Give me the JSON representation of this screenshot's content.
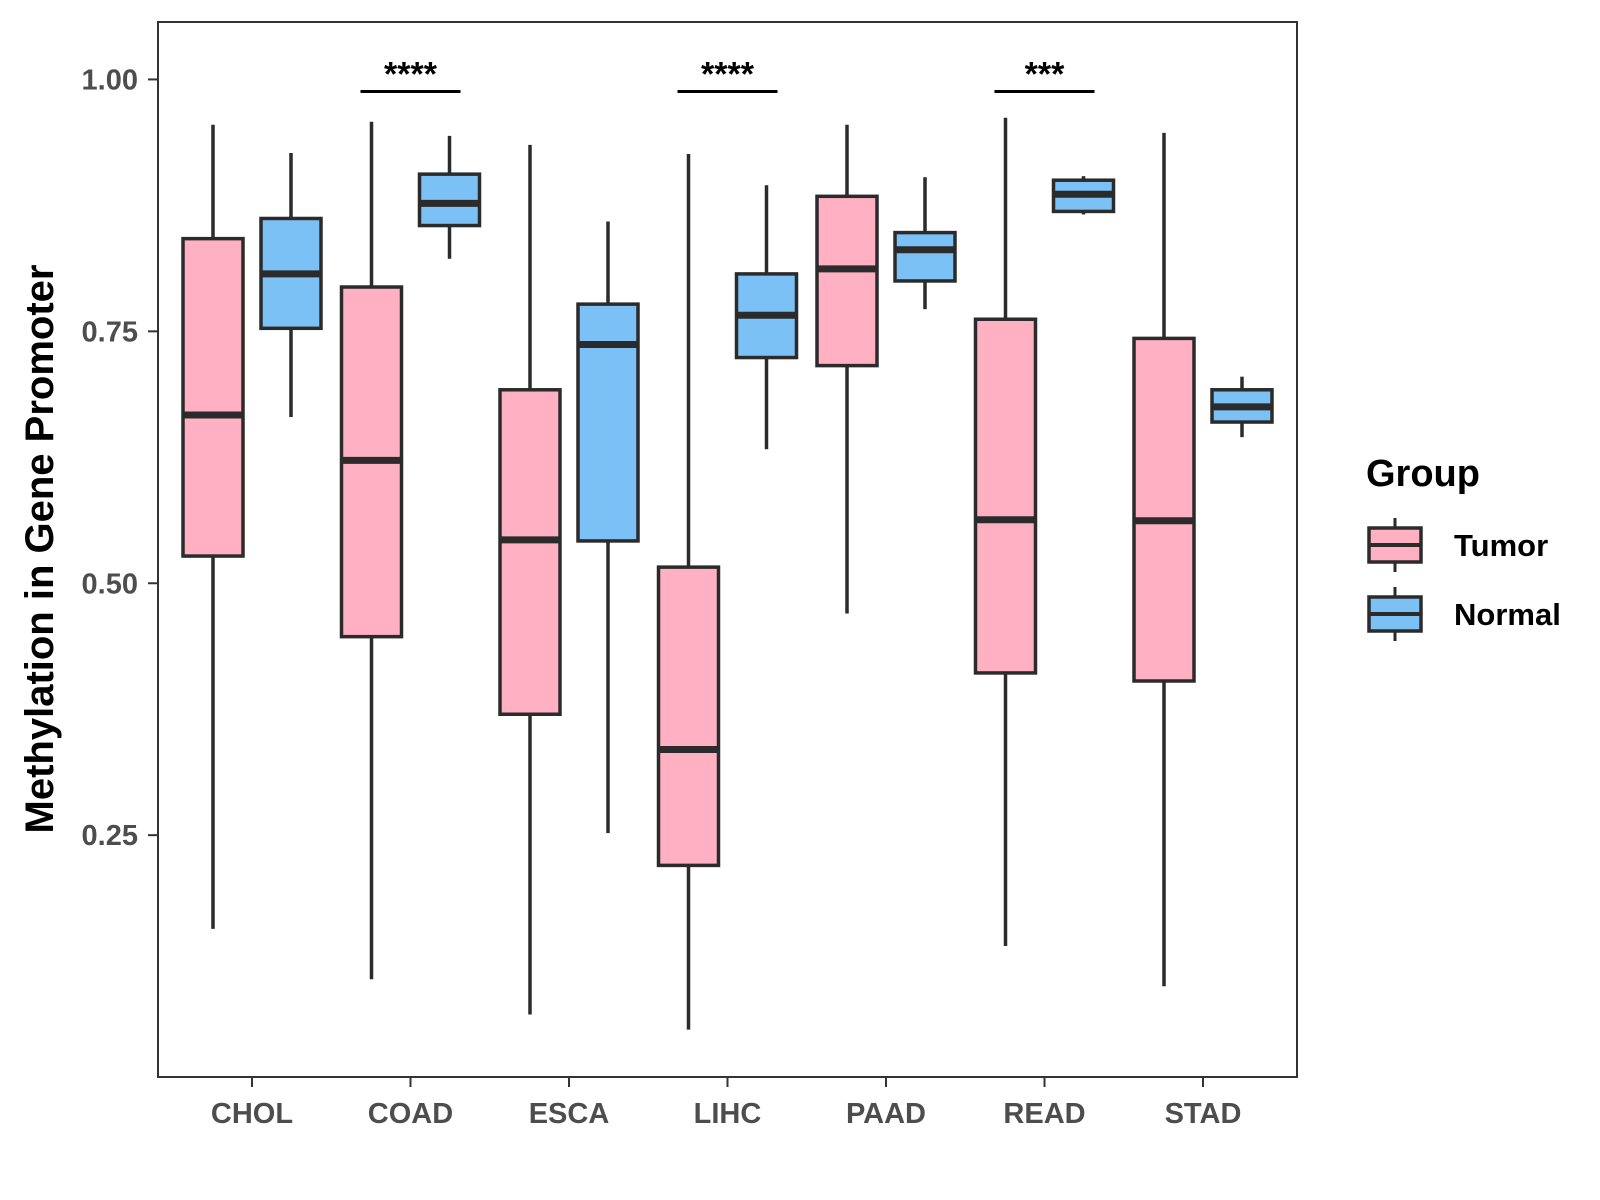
{
  "chart_data": {
    "type": "boxplot",
    "title": "",
    "xlabel": "",
    "ylabel": "Methylation in Gene Promoter",
    "ylim": [
      0.01,
      1.057
    ],
    "yticks": [
      0.25,
      0.5,
      0.75,
      1.0
    ],
    "ytick_labels": [
      "0.25",
      "0.50",
      "0.75",
      "1.00"
    ],
    "grid": false,
    "legend": {
      "title": "Group",
      "position": "right",
      "entries": [
        {
          "name": "Tumor",
          "color": "#ffb0c2"
        },
        {
          "name": "Normal",
          "color": "#7bc1f6"
        }
      ]
    },
    "categories": [
      "CHOL",
      "COAD",
      "ESCA",
      "LIHC",
      "PAAD",
      "READ",
      "STAD"
    ],
    "series": [
      {
        "name": "Tumor",
        "color": "#ffb0c2",
        "boxes": [
          {
            "low": 0.157,
            "q1": 0.527,
            "median": 0.667,
            "q3": 0.842,
            "high": 0.955
          },
          {
            "low": 0.107,
            "q1": 0.447,
            "median": 0.622,
            "q3": 0.794,
            "high": 0.958
          },
          {
            "low": 0.072,
            "q1": 0.37,
            "median": 0.543,
            "q3": 0.692,
            "high": 0.935
          },
          {
            "low": 0.057,
            "q1": 0.22,
            "median": 0.335,
            "q3": 0.516,
            "high": 0.926
          },
          {
            "low": 0.47,
            "q1": 0.716,
            "median": 0.812,
            "q3": 0.884,
            "high": 0.955
          },
          {
            "low": 0.14,
            "q1": 0.411,
            "median": 0.563,
            "q3": 0.762,
            "high": 0.962
          },
          {
            "low": 0.1,
            "q1": 0.403,
            "median": 0.562,
            "q3": 0.743,
            "high": 0.947
          }
        ]
      },
      {
        "name": "Normal",
        "color": "#7bc1f6",
        "boxes": [
          {
            "low": 0.665,
            "q1": 0.753,
            "median": 0.807,
            "q3": 0.862,
            "high": 0.927
          },
          {
            "low": 0.822,
            "q1": 0.855,
            "median": 0.877,
            "q3": 0.906,
            "high": 0.944
          },
          {
            "low": 0.252,
            "q1": 0.542,
            "median": 0.737,
            "q3": 0.777,
            "high": 0.859
          },
          {
            "low": 0.633,
            "q1": 0.724,
            "median": 0.766,
            "q3": 0.807,
            "high": 0.895
          },
          {
            "low": 0.772,
            "q1": 0.8,
            "median": 0.831,
            "q3": 0.848,
            "high": 0.903
          },
          {
            "low": 0.866,
            "q1": 0.869,
            "median": 0.886,
            "q3": 0.9,
            "high": 0.904
          },
          {
            "low": 0.645,
            "q1": 0.66,
            "median": 0.675,
            "q3": 0.692,
            "high": 0.705
          }
        ]
      }
    ],
    "annotations": [
      {
        "category": "COAD",
        "label": "****",
        "y": 0.988
      },
      {
        "category": "LIHC",
        "label": "****",
        "y": 0.988
      },
      {
        "category": "READ",
        "label": "***",
        "y": 0.988
      }
    ]
  }
}
